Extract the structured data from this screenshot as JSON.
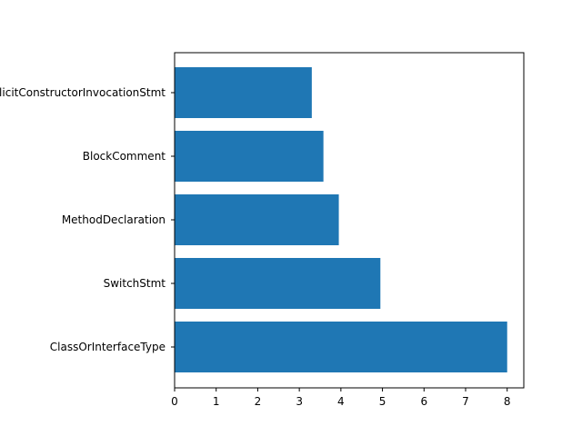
{
  "chart_data": {
    "type": "bar",
    "orientation": "horizontal",
    "categories": [
      "ClassOrInterfaceType",
      "SwitchStmt",
      "MethodDeclaration",
      "BlockComment",
      "ExplicitConstructorInvocationStmt"
    ],
    "values": [
      8.0,
      4.95,
      3.95,
      3.58,
      3.3
    ],
    "title": "",
    "xlabel": "",
    "ylabel": "",
    "xlim": [
      0,
      8.4
    ],
    "xticks": [
      0,
      1,
      2,
      3,
      4,
      5,
      6,
      7,
      8
    ],
    "grid": false,
    "bar_color": "#1f77b4"
  }
}
